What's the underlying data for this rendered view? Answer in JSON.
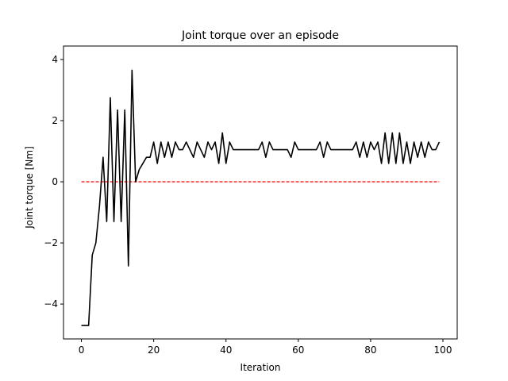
{
  "chart_data": {
    "type": "line",
    "title": "Joint torque over an episode",
    "xlabel": "Iteration",
    "ylabel": "Joint torque [Nm]",
    "x": [
      0,
      1,
      2,
      3,
      4,
      5,
      6,
      7,
      8,
      9,
      10,
      11,
      12,
      13,
      14,
      15,
      16,
      17,
      18,
      19,
      20,
      21,
      22,
      23,
      24,
      25,
      26,
      27,
      28,
      29,
      30,
      31,
      32,
      33,
      34,
      35,
      36,
      37,
      38,
      39,
      40,
      41,
      42,
      43,
      44,
      45,
      46,
      47,
      48,
      49,
      50,
      51,
      52,
      53,
      54,
      55,
      56,
      57,
      58,
      59,
      60,
      61,
      62,
      63,
      64,
      65,
      66,
      67,
      68,
      69,
      70,
      71,
      72,
      73,
      74,
      75,
      76,
      77,
      78,
      79,
      80,
      81,
      82,
      83,
      84,
      85,
      86,
      87,
      88,
      89,
      90,
      91,
      92,
      93,
      94,
      95,
      96,
      97,
      98,
      99
    ],
    "series": [
      {
        "color": "#000000",
        "values": [
          -4.7,
          -4.7,
          -4.7,
          -2.4,
          -2.0,
          -0.8,
          0.8,
          -1.3,
          2.75,
          -1.3,
          2.35,
          -1.3,
          2.35,
          -2.75,
          3.65,
          0.0,
          0.4,
          0.6,
          0.8,
          0.8,
          1.3,
          0.6,
          1.3,
          0.8,
          1.3,
          0.8,
          1.3,
          1.05,
          1.05,
          1.3,
          1.05,
          0.8,
          1.3,
          1.05,
          0.8,
          1.3,
          1.05,
          1.3,
          0.6,
          1.6,
          0.6,
          1.3,
          1.05,
          1.05,
          1.05,
          1.05,
          1.05,
          1.05,
          1.05,
          1.05,
          1.3,
          0.8,
          1.3,
          1.05,
          1.05,
          1.05,
          1.05,
          1.05,
          0.8,
          1.3,
          1.05,
          1.05,
          1.05,
          1.05,
          1.05,
          1.05,
          1.3,
          0.8,
          1.3,
          1.05,
          1.05,
          1.05,
          1.05,
          1.05,
          1.05,
          1.05,
          1.3,
          0.8,
          1.3,
          0.8,
          1.3,
          1.05,
          1.3,
          0.6,
          1.6,
          0.6,
          1.6,
          0.6,
          1.6,
          0.6,
          1.3,
          0.6,
          1.3,
          0.8,
          1.3,
          0.8,
          1.3,
          1.05,
          1.05,
          1.3
        ]
      }
    ],
    "reference": {
      "y": 0,
      "x": [
        0,
        99
      ],
      "color": "#ff0000",
      "dashed": true
    },
    "xlim": [
      -4.95,
      103.95
    ],
    "ylim": [
      -5.14,
      4.44
    ],
    "xticks": [
      0,
      20,
      40,
      60,
      80,
      100
    ],
    "yticks": [
      {
        "value": -4,
        "label": "−4"
      },
      {
        "value": -2,
        "label": "−2"
      },
      0,
      2,
      4
    ]
  }
}
